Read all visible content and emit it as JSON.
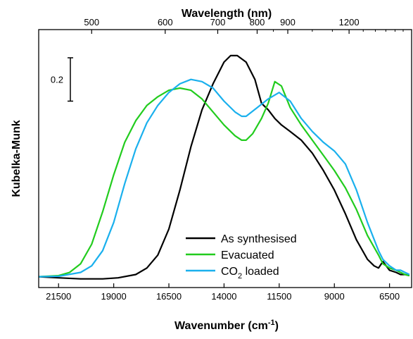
{
  "chart_data": {
    "type": "line",
    "title": "",
    "xlabel": "Wavenumber (cm⁻¹)",
    "xlabel_parts": {
      "base": "Wavenumber (cm",
      "sup": "-1",
      "tail": ")"
    },
    "top_xlabel": "Wavelength (nm)",
    "ylabel": "Kubelka-Munk",
    "x_reversed": true,
    "xlim": [
      22400,
      5500
    ],
    "ylim": [
      -0.05,
      1.14
    ],
    "y_ticks_shown": false,
    "grid": false,
    "legend_position": "bottom-center",
    "xticks_bottom": [
      21500,
      19000,
      16500,
      14000,
      11500,
      9000,
      6500
    ],
    "xticks_top": [
      {
        "label": "500",
        "nm": 500
      },
      {
        "label": "600",
        "nm": 600
      },
      {
        "label": "700",
        "nm": 700
      },
      {
        "label": "800",
        "nm": 800
      },
      {
        "label": "900",
        "nm": 900
      },
      {
        "label": "1200",
        "nm": 1200
      }
    ],
    "top_minor_nm": [
      850,
      1000,
      1100,
      1300,
      1400,
      1500,
      1600,
      1700
    ],
    "scale_bar": {
      "label": "0.2",
      "value": 0.2,
      "y_bottom": 0.81
    },
    "series": [
      {
        "name": "As synthesised",
        "name_parts": {
          "base": "As synthesised"
        },
        "color": "#000000",
        "x": [
          22400,
          21500,
          20500,
          19500,
          18800,
          18000,
          17500,
          17000,
          16500,
          16000,
          15500,
          15000,
          14500,
          14000,
          13700,
          13400,
          13000,
          12600,
          12300,
          12000,
          11700,
          11400,
          11000,
          10500,
          10000,
          9500,
          9000,
          8500,
          8000,
          7500,
          7200,
          7000,
          6800,
          6500,
          6200,
          6000,
          5800,
          5600
        ],
        "values": [
          0.0,
          -0.005,
          -0.01,
          -0.01,
          -0.005,
          0.01,
          0.04,
          0.1,
          0.22,
          0.4,
          0.6,
          0.77,
          0.89,
          0.99,
          1.02,
          1.02,
          0.99,
          0.91,
          0.8,
          0.77,
          0.73,
          0.7,
          0.67,
          0.63,
          0.57,
          0.49,
          0.4,
          0.29,
          0.17,
          0.08,
          0.05,
          0.04,
          0.07,
          0.03,
          0.02,
          0.01,
          0.01,
          0.005
        ]
      },
      {
        "name": "Evacuated",
        "name_parts": {
          "base": "Evacuated"
        },
        "color": "#22cc1e",
        "x": [
          22400,
          21500,
          21000,
          20500,
          20000,
          19500,
          19000,
          18500,
          18000,
          17500,
          17000,
          16500,
          16000,
          15500,
          15000,
          14500,
          14000,
          13500,
          13200,
          13000,
          12700,
          12300,
          12000,
          11700,
          11400,
          11000,
          10500,
          10000,
          9500,
          9000,
          8500,
          8000,
          7500,
          7000,
          6800,
          6500,
          6200,
          6000,
          5800,
          5600
        ],
        "values": [
          0.0,
          0.005,
          0.02,
          0.06,
          0.15,
          0.3,
          0.47,
          0.62,
          0.72,
          0.79,
          0.83,
          0.86,
          0.87,
          0.86,
          0.82,
          0.76,
          0.7,
          0.65,
          0.63,
          0.63,
          0.66,
          0.73,
          0.8,
          0.9,
          0.88,
          0.78,
          0.7,
          0.63,
          0.56,
          0.49,
          0.41,
          0.31,
          0.19,
          0.1,
          0.06,
          0.04,
          0.03,
          0.02,
          0.01,
          0.005
        ]
      },
      {
        "name": "CO₂ loaded",
        "name_parts": {
          "base": "CO",
          "sub": "2",
          "tail": " loaded"
        },
        "color": "#1ab0ed",
        "x": [
          22400,
          21500,
          20500,
          20000,
          19500,
          19000,
          18500,
          18000,
          17500,
          17000,
          16500,
          16000,
          15500,
          15000,
          14500,
          14000,
          13500,
          13200,
          13000,
          12500,
          12000,
          11500,
          11000,
          10500,
          10000,
          9500,
          9000,
          8500,
          8000,
          7500,
          7000,
          6800,
          6500,
          6200,
          6000,
          5800,
          5600
        ],
        "values": [
          0.0,
          0.002,
          0.02,
          0.05,
          0.12,
          0.25,
          0.43,
          0.59,
          0.71,
          0.79,
          0.85,
          0.89,
          0.91,
          0.9,
          0.87,
          0.81,
          0.76,
          0.74,
          0.74,
          0.78,
          0.82,
          0.85,
          0.81,
          0.73,
          0.67,
          0.62,
          0.58,
          0.52,
          0.4,
          0.25,
          0.12,
          0.08,
          0.05,
          0.03,
          0.03,
          0.02,
          0.01
        ]
      }
    ]
  }
}
